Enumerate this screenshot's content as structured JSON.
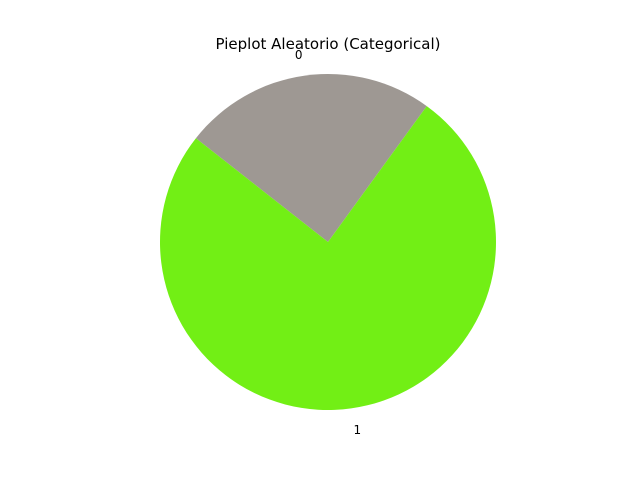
{
  "chart_data": {
    "type": "pie",
    "title": "Pieplot Aleatorio (Categorical)",
    "labels": [
      "0",
      "1"
    ],
    "values": [
      24.4,
      75.6
    ],
    "colors": [
      "#9e9893",
      "#72ef15"
    ],
    "start_angle": 54,
    "direction": "counterclockwise"
  }
}
